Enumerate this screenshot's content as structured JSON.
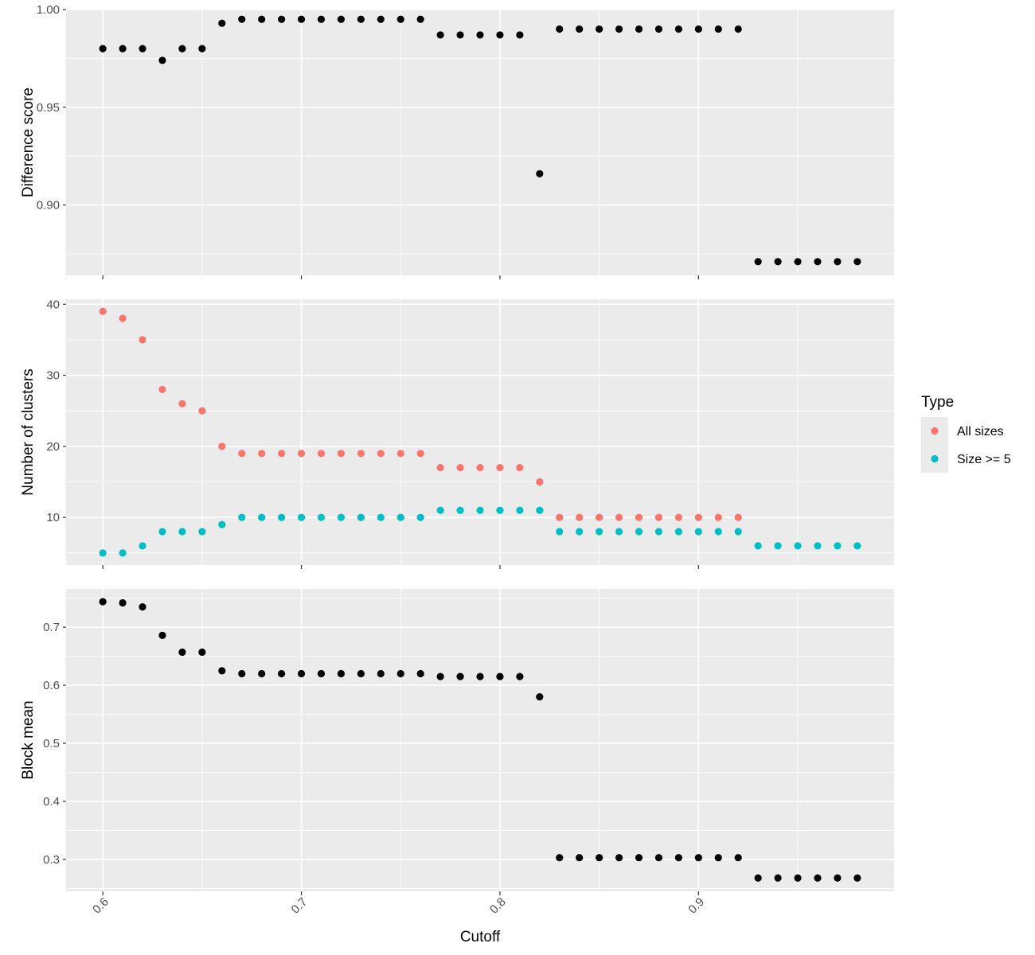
{
  "chart_data": {
    "type": "scatter",
    "xlabel": "Cutoff",
    "x_ticks": [
      0.6,
      0.7,
      0.8,
      0.9
    ],
    "x_tick_labels": [
      "0.6",
      "0.7",
      "0.8",
      "0.9"
    ],
    "xlim": [
      0.5815,
      0.9985
    ],
    "grid": true,
    "legend": {
      "title": "Type",
      "placement": "right",
      "entries": [
        {
          "label": "All sizes",
          "color": "#F8766D"
        },
        {
          "label": "Size >= 5",
          "color": "#00BFC4"
        }
      ]
    },
    "x": [
      0.6,
      0.61,
      0.62,
      0.63,
      0.64,
      0.65,
      0.66,
      0.67,
      0.68,
      0.69,
      0.7,
      0.71,
      0.72,
      0.73,
      0.74,
      0.75,
      0.76,
      0.77,
      0.78,
      0.79,
      0.8,
      0.81,
      0.82,
      0.83,
      0.84,
      0.85,
      0.86,
      0.87,
      0.88,
      0.89,
      0.9,
      0.91,
      0.92,
      0.93,
      0.94,
      0.95,
      0.96,
      0.97,
      0.98
    ],
    "panels": [
      {
        "ylabel": "Difference score",
        "ylim": [
          0.864,
          1.0
        ],
        "y_ticks": [
          0.9,
          0.95,
          1.0
        ],
        "y_tick_labels": [
          "0.90",
          "0.95",
          "1.00"
        ],
        "series": [
          {
            "color": "#000000",
            "values": [
              0.98,
              0.98,
              0.98,
              0.974,
              0.98,
              0.98,
              0.993,
              0.995,
              0.995,
              0.995,
              0.995,
              0.995,
              0.995,
              0.995,
              0.995,
              0.995,
              0.995,
              0.987,
              0.987,
              0.987,
              0.987,
              0.987,
              0.916,
              0.99,
              0.99,
              0.99,
              0.99,
              0.99,
              0.99,
              0.99,
              0.99,
              0.99,
              0.99,
              0.871,
              0.871,
              0.871,
              0.871,
              0.871,
              0.871
            ]
          }
        ]
      },
      {
        "ylabel": "Number of clusters",
        "ylim": [
          3.3,
          40.7
        ],
        "y_ticks": [
          10,
          20,
          30,
          40
        ],
        "y_tick_labels": [
          "10",
          "20",
          "30",
          "40"
        ],
        "series": [
          {
            "name": "All sizes",
            "color": "#F8766D",
            "values": [
              39,
              38,
              35,
              28,
              26,
              25,
              20,
              19,
              19,
              19,
              19,
              19,
              19,
              19,
              19,
              19,
              19,
              17,
              17,
              17,
              17,
              17,
              15,
              10,
              10,
              10,
              10,
              10,
              10,
              10,
              10,
              10,
              10,
              null,
              null,
              null,
              null,
              null,
              null
            ]
          },
          {
            "name": "Size >= 5",
            "color": "#00BFC4",
            "values": [
              5,
              5,
              6,
              8,
              8,
              8,
              9,
              10,
              10,
              10,
              10,
              10,
              10,
              10,
              10,
              10,
              10,
              11,
              11,
              11,
              11,
              11,
              11,
              8,
              8,
              8,
              8,
              8,
              8,
              8,
              8,
              8,
              8,
              6,
              6,
              6,
              6,
              6,
              6
            ]
          }
        ]
      },
      {
        "ylabel": "Block mean",
        "ylim": [
          0.245,
          0.766
        ],
        "y_ticks": [
          0.3,
          0.4,
          0.5,
          0.6,
          0.7
        ],
        "y_tick_labels": [
          "0.3",
          "0.4",
          "0.5",
          "0.6",
          "0.7"
        ],
        "series": [
          {
            "color": "#000000",
            "values": [
              0.744,
              0.742,
              0.735,
              0.686,
              0.657,
              0.657,
              0.625,
              0.62,
              0.62,
              0.62,
              0.62,
              0.62,
              0.62,
              0.62,
              0.62,
              0.62,
              0.62,
              0.615,
              0.615,
              0.615,
              0.615,
              0.615,
              0.58,
              0.303,
              0.303,
              0.303,
              0.303,
              0.303,
              0.303,
              0.303,
              0.303,
              0.303,
              0.303,
              0.268,
              0.268,
              0.268,
              0.268,
              0.268,
              0.268
            ]
          }
        ]
      }
    ]
  }
}
